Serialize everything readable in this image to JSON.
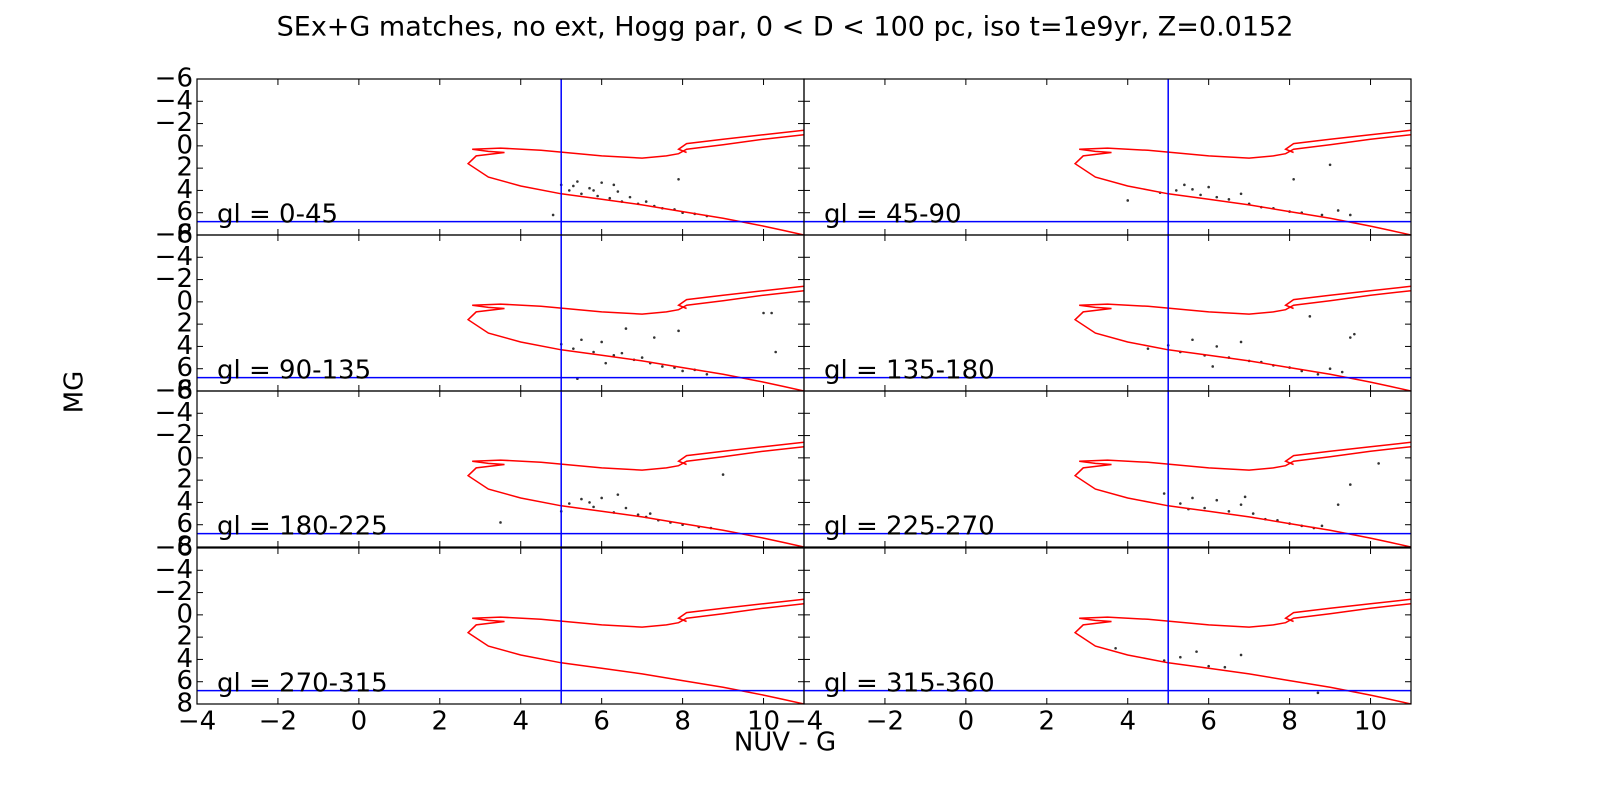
{
  "figure": {
    "title": "SEx+G matches, no ext, Hogg par, 0 < D < 100 pc, iso t=1e9yr, Z=0.0152",
    "x_label": "NUV - G",
    "y_label": "MG"
  },
  "chart_data": [
    {
      "type": "scatter",
      "annotation": "gl = 0-45",
      "xlim": [
        -4,
        11
      ],
      "ylim": [
        -6,
        8
      ],
      "y_inverted": true,
      "xticks": [
        {
          "value": -4,
          "label": "−4"
        },
        {
          "value": -2,
          "label": "−2"
        },
        0,
        2,
        4,
        6,
        8,
        10
      ],
      "yticks": [
        {
          "value": -6,
          "label": "−6"
        },
        {
          "value": -4,
          "label": "−4"
        },
        {
          "value": -2,
          "label": "−2"
        },
        0,
        2,
        4,
        6,
        8
      ],
      "vline": 5,
      "hline": 6.8,
      "line_color": "#0000ff",
      "isochrone": {
        "color": "#ff0000",
        "x": [
          11,
          10.5,
          10,
          9,
          8,
          7,
          6,
          5,
          4,
          3.2,
          2.7,
          2.9,
          3.6,
          3.2,
          2.8,
          3.5,
          4.5,
          6,
          7,
          7.6,
          7.9,
          8.1,
          9,
          10,
          11,
          null,
          11,
          10,
          9,
          8.1,
          7.9,
          8.1
        ],
        "y": [
          8,
          7.6,
          7.2,
          6.5,
          5.9,
          5.3,
          4.8,
          4.3,
          3.6,
          2.8,
          1.6,
          0.9,
          0.6,
          0.5,
          0.3,
          0.2,
          0.4,
          0.9,
          1.1,
          0.9,
          0.7,
          0.3,
          -0.1,
          -0.6,
          -1.0,
          null,
          -1.4,
          -1.0,
          -0.6,
          -0.2,
          0.3,
          0.6
        ]
      },
      "points": {
        "color": "#333333",
        "x": [
          5.0,
          5.2,
          5.4,
          5.5,
          5.7,
          5.9,
          6.0,
          6.2,
          6.4,
          6.5,
          6.7,
          6.9,
          7.1,
          7.3,
          7.5,
          7.8,
          8.0,
          8.3,
          8.6,
          5.3,
          5.8,
          6.3,
          7.9,
          4.8
        ],
        "y": [
          3.5,
          4.0,
          3.2,
          4.3,
          3.8,
          4.5,
          3.3,
          4.7,
          4.1,
          5.0,
          4.6,
          5.2,
          5.0,
          5.4,
          5.6,
          5.7,
          6.0,
          6.1,
          6.3,
          3.6,
          4.0,
          3.5,
          3.0,
          6.2
        ]
      }
    },
    {
      "type": "scatter",
      "annotation": "gl = 45-90",
      "xlim": [
        -4,
        11
      ],
      "ylim": [
        -6,
        8
      ],
      "y_inverted": true,
      "xticks": [
        {
          "value": -4,
          "label": "−4"
        },
        {
          "value": -2,
          "label": "−2"
        },
        0,
        2,
        4,
        6,
        8,
        10
      ],
      "yticks": [
        {
          "value": -6,
          "label": "−6"
        },
        {
          "value": -4,
          "label": "−4"
        },
        {
          "value": -2,
          "label": "−2"
        },
        0,
        2,
        4,
        6,
        8
      ],
      "vline": 5,
      "hline": 6.8,
      "line_color": "#0000ff",
      "isochrone": {
        "color": "#ff0000",
        "x": [
          11,
          10.5,
          10,
          9,
          8,
          7,
          6,
          5,
          4,
          3.2,
          2.7,
          2.9,
          3.6,
          3.2,
          2.8,
          3.5,
          4.5,
          6,
          7,
          7.6,
          7.9,
          8.1,
          9,
          10,
          11,
          null,
          11,
          10,
          9,
          8.1,
          7.9,
          8.1
        ],
        "y": [
          8,
          7.6,
          7.2,
          6.5,
          5.9,
          5.3,
          4.8,
          4.3,
          3.6,
          2.8,
          1.6,
          0.9,
          0.6,
          0.5,
          0.3,
          0.2,
          0.4,
          0.9,
          1.1,
          0.9,
          0.7,
          0.3,
          -0.1,
          -0.6,
          -1.0,
          null,
          -1.4,
          -1.0,
          -0.6,
          -0.2,
          0.3,
          0.6
        ]
      },
      "points": {
        "color": "#333333",
        "x": [
          4.0,
          4.8,
          5.2,
          5.4,
          5.6,
          5.8,
          6.0,
          6.2,
          6.5,
          6.8,
          7.0,
          7.3,
          7.6,
          8.0,
          8.3,
          8.8,
          9.0,
          9.5,
          9.2,
          8.1
        ],
        "y": [
          4.9,
          4.2,
          4.0,
          3.5,
          3.9,
          4.4,
          3.7,
          4.6,
          4.8,
          4.3,
          5.2,
          5.5,
          5.6,
          5.9,
          6.0,
          6.2,
          1.7,
          6.2,
          5.8,
          3.0
        ]
      }
    },
    {
      "type": "scatter",
      "annotation": "gl = 90-135",
      "xlim": [
        -4,
        11
      ],
      "ylim": [
        -6,
        8
      ],
      "y_inverted": true,
      "xticks": [
        {
          "value": -4,
          "label": "−4"
        },
        {
          "value": -2,
          "label": "−2"
        },
        0,
        2,
        4,
        6,
        8,
        10
      ],
      "yticks": [
        {
          "value": -6,
          "label": "−6"
        },
        {
          "value": -4,
          "label": "−4"
        },
        {
          "value": -2,
          "label": "−2"
        },
        0,
        2,
        4,
        6,
        8
      ],
      "vline": 5,
      "hline": 6.8,
      "line_color": "#0000ff",
      "isochrone": {
        "color": "#ff0000",
        "x": [
          11,
          10.5,
          10,
          9,
          8,
          7,
          6,
          5,
          4,
          3.2,
          2.7,
          2.9,
          3.6,
          3.2,
          2.8,
          3.5,
          4.5,
          6,
          7,
          7.6,
          7.9,
          8.1,
          9,
          10,
          11,
          null,
          11,
          10,
          9,
          8.1,
          7.9,
          8.1
        ],
        "y": [
          8,
          7.6,
          7.2,
          6.5,
          5.9,
          5.3,
          4.8,
          4.3,
          3.6,
          2.8,
          1.6,
          0.9,
          0.6,
          0.5,
          0.3,
          0.2,
          0.4,
          0.9,
          1.1,
          0.9,
          0.7,
          0.3,
          -0.1,
          -0.6,
          -1.0,
          null,
          -1.4,
          -1.0,
          -0.6,
          -0.2,
          0.3,
          0.6
        ]
      },
      "points": {
        "color": "#333333",
        "x": [
          5.0,
          5.3,
          5.5,
          5.8,
          6.0,
          6.3,
          6.5,
          6.8,
          7.0,
          7.2,
          7.5,
          7.8,
          8.0,
          8.3,
          8.6,
          6.6,
          7.3,
          7.9,
          10.0,
          10.2,
          10.3,
          5.4,
          6.1
        ],
        "y": [
          3.8,
          4.2,
          3.4,
          4.5,
          3.6,
          4.8,
          4.6,
          5.2,
          5.0,
          5.5,
          5.8,
          5.9,
          6.2,
          6.1,
          6.5,
          2.4,
          3.2,
          2.6,
          1.0,
          1.0,
          4.5,
          6.9,
          5.5
        ]
      }
    },
    {
      "type": "scatter",
      "annotation": "gl = 135-180",
      "xlim": [
        -4,
        11
      ],
      "ylim": [
        -6,
        8
      ],
      "y_inverted": true,
      "xticks": [
        {
          "value": -4,
          "label": "−4"
        },
        {
          "value": -2,
          "label": "−2"
        },
        0,
        2,
        4,
        6,
        8,
        10
      ],
      "yticks": [
        {
          "value": -6,
          "label": "−6"
        },
        {
          "value": -4,
          "label": "−4"
        },
        {
          "value": -2,
          "label": "−2"
        },
        0,
        2,
        4,
        6,
        8
      ],
      "vline": 5,
      "hline": 6.8,
      "line_color": "#0000ff",
      "isochrone": {
        "color": "#ff0000",
        "x": [
          11,
          10.5,
          10,
          9,
          8,
          7,
          6,
          5,
          4,
          3.2,
          2.7,
          2.9,
          3.6,
          3.2,
          2.8,
          3.5,
          4.5,
          6,
          7,
          7.6,
          7.9,
          8.1,
          9,
          10,
          11,
          null,
          11,
          10,
          9,
          8.1,
          7.9,
          8.1
        ],
        "y": [
          8,
          7.6,
          7.2,
          6.5,
          5.9,
          5.3,
          4.8,
          4.3,
          3.6,
          2.8,
          1.6,
          0.9,
          0.6,
          0.5,
          0.3,
          0.2,
          0.4,
          0.9,
          1.1,
          0.9,
          0.7,
          0.3,
          -0.1,
          -0.6,
          -1.0,
          null,
          -1.4,
          -1.0,
          -0.6,
          -0.2,
          0.3,
          0.6
        ]
      },
      "points": {
        "color": "#333333",
        "x": [
          4.5,
          5.0,
          5.3,
          5.6,
          5.9,
          6.2,
          6.5,
          6.8,
          7.0,
          7.3,
          7.6,
          8.0,
          8.3,
          8.7,
          9.0,
          9.3,
          9.5,
          9.6,
          8.5,
          6.1
        ],
        "y": [
          4.2,
          3.9,
          4.5,
          3.4,
          4.8,
          4.0,
          5.0,
          3.6,
          5.3,
          5.4,
          5.7,
          5.9,
          6.2,
          6.5,
          6.0,
          6.3,
          3.2,
          2.9,
          1.3,
          5.8
        ]
      }
    },
    {
      "type": "scatter",
      "annotation": "gl = 180-225",
      "xlim": [
        -4,
        11
      ],
      "ylim": [
        -6,
        8
      ],
      "y_inverted": true,
      "xticks": [
        {
          "value": -4,
          "label": "−4"
        },
        {
          "value": -2,
          "label": "−2"
        },
        0,
        2,
        4,
        6,
        8,
        10
      ],
      "yticks": [
        {
          "value": -6,
          "label": "−6"
        },
        {
          "value": -4,
          "label": "−4"
        },
        {
          "value": -2,
          "label": "−2"
        },
        0,
        2,
        4,
        6,
        8
      ],
      "vline": 5,
      "hline": 6.8,
      "line_color": "#0000ff",
      "isochrone": {
        "color": "#ff0000",
        "x": [
          11,
          10.5,
          10,
          9,
          8,
          7,
          6,
          5,
          4,
          3.2,
          2.7,
          2.9,
          3.6,
          3.2,
          2.8,
          3.5,
          4.5,
          6,
          7,
          7.6,
          7.9,
          8.1,
          9,
          10,
          11,
          null,
          11,
          10,
          9,
          8.1,
          7.9,
          8.1
        ],
        "y": [
          8,
          7.6,
          7.2,
          6.5,
          5.9,
          5.3,
          4.8,
          4.3,
          3.6,
          2.8,
          1.6,
          0.9,
          0.6,
          0.5,
          0.3,
          0.2,
          0.4,
          0.9,
          1.1,
          0.9,
          0.7,
          0.3,
          -0.1,
          -0.6,
          -1.0,
          null,
          -1.4,
          -1.0,
          -0.6,
          -0.2,
          0.3,
          0.6
        ]
      },
      "points": {
        "color": "#333333",
        "x": [
          3.5,
          5.0,
          5.2,
          5.5,
          5.8,
          6.0,
          6.3,
          6.6,
          6.9,
          7.1,
          7.4,
          7.7,
          8.0,
          8.4,
          8.7,
          6.4,
          9.0,
          5.7,
          7.2
        ],
        "y": [
          5.8,
          4.8,
          4.1,
          3.7,
          4.4,
          3.6,
          4.9,
          4.5,
          5.1,
          5.3,
          5.6,
          5.8,
          6.0,
          6.2,
          6.3,
          3.3,
          1.5,
          4.0,
          5.0
        ]
      }
    },
    {
      "type": "scatter",
      "annotation": "gl = 225-270",
      "xlim": [
        -4,
        11
      ],
      "ylim": [
        -6,
        8
      ],
      "y_inverted": true,
      "xticks": [
        {
          "value": -4,
          "label": "−4"
        },
        {
          "value": -2,
          "label": "−2"
        },
        0,
        2,
        4,
        6,
        8,
        10
      ],
      "yticks": [
        {
          "value": -6,
          "label": "−6"
        },
        {
          "value": -4,
          "label": "−4"
        },
        {
          "value": -2,
          "label": "−2"
        },
        0,
        2,
        4,
        6,
        8
      ],
      "vline": 5,
      "hline": 6.8,
      "line_color": "#0000ff",
      "isochrone": {
        "color": "#ff0000",
        "x": [
          11,
          10.5,
          10,
          9,
          8,
          7,
          6,
          5,
          4,
          3.2,
          2.7,
          2.9,
          3.6,
          3.2,
          2.8,
          3.5,
          4.5,
          6,
          7,
          7.6,
          7.9,
          8.1,
          9,
          10,
          11,
          null,
          11,
          10,
          9,
          8.1,
          7.9,
          8.1
        ],
        "y": [
          8,
          7.6,
          7.2,
          6.5,
          5.9,
          5.3,
          4.8,
          4.3,
          3.6,
          2.8,
          1.6,
          0.9,
          0.6,
          0.5,
          0.3,
          0.2,
          0.4,
          0.9,
          1.1,
          0.9,
          0.7,
          0.3,
          -0.1,
          -0.6,
          -1.0,
          null,
          -1.4,
          -1.0,
          -0.6,
          -0.2,
          0.3,
          0.6
        ]
      },
      "points": {
        "color": "#333333",
        "x": [
          4.9,
          5.3,
          5.6,
          5.9,
          6.2,
          6.5,
          6.8,
          7.1,
          7.4,
          7.7,
          8.0,
          8.3,
          8.6,
          8.8,
          9.2,
          9.5,
          10.2,
          5.5,
          6.9
        ],
        "y": [
          3.2,
          4.1,
          3.6,
          4.5,
          3.8,
          4.8,
          4.2,
          5.0,
          5.5,
          5.6,
          5.9,
          6.1,
          6.3,
          6.1,
          4.2,
          2.4,
          0.5,
          4.6,
          3.5
        ]
      }
    },
    {
      "type": "scatter",
      "annotation": "gl = 270-315",
      "xlim": [
        -4,
        11
      ],
      "ylim": [
        -6,
        8
      ],
      "y_inverted": true,
      "xticks": [
        {
          "value": -4,
          "label": "−4"
        },
        {
          "value": -2,
          "label": "−2"
        },
        0,
        2,
        4,
        6,
        8,
        10
      ],
      "yticks": [
        {
          "value": -6,
          "label": "−6"
        },
        {
          "value": -4,
          "label": "−4"
        },
        {
          "value": -2,
          "label": "−2"
        },
        0,
        2,
        4,
        6,
        8
      ],
      "vline": 5,
      "hline": 6.8,
      "line_color": "#0000ff",
      "isochrone": {
        "color": "#ff0000",
        "x": [
          11,
          10.5,
          10,
          9,
          8,
          7,
          6,
          5,
          4,
          3.2,
          2.7,
          2.9,
          3.6,
          3.2,
          2.8,
          3.5,
          4.5,
          6,
          7,
          7.6,
          7.9,
          8.1,
          9,
          10,
          11,
          null,
          11,
          10,
          9,
          8.1,
          7.9,
          8.1
        ],
        "y": [
          8,
          7.6,
          7.2,
          6.5,
          5.9,
          5.3,
          4.8,
          4.3,
          3.6,
          2.8,
          1.6,
          0.9,
          0.6,
          0.5,
          0.3,
          0.2,
          0.4,
          0.9,
          1.1,
          0.9,
          0.7,
          0.3,
          -0.1,
          -0.6,
          -1.0,
          null,
          -1.4,
          -1.0,
          -0.6,
          -0.2,
          0.3,
          0.6
        ]
      },
      "points": {
        "color": "#333333",
        "x": [],
        "y": []
      }
    },
    {
      "type": "scatter",
      "annotation": "gl = 315-360",
      "xlim": [
        -4,
        11
      ],
      "ylim": [
        -6,
        8
      ],
      "y_inverted": true,
      "xticks": [
        {
          "value": -4,
          "label": "−4"
        },
        {
          "value": -2,
          "label": "−2"
        },
        0,
        2,
        4,
        6,
        8,
        10
      ],
      "yticks": [
        {
          "value": -6,
          "label": "−6"
        },
        {
          "value": -4,
          "label": "−4"
        },
        {
          "value": -2,
          "label": "−2"
        },
        0,
        2,
        4,
        6,
        8
      ],
      "vline": 5,
      "hline": 6.8,
      "line_color": "#0000ff",
      "isochrone": {
        "color": "#ff0000",
        "x": [
          11,
          10.5,
          10,
          9,
          8,
          7,
          6,
          5,
          4,
          3.2,
          2.7,
          2.9,
          3.6,
          3.2,
          2.8,
          3.5,
          4.5,
          6,
          7,
          7.6,
          7.9,
          8.1,
          9,
          10,
          11,
          null,
          11,
          10,
          9,
          8.1,
          7.9,
          8.1
        ],
        "y": [
          8,
          7.6,
          7.2,
          6.5,
          5.9,
          5.3,
          4.8,
          4.3,
          3.6,
          2.8,
          1.6,
          0.9,
          0.6,
          0.5,
          0.3,
          0.2,
          0.4,
          0.9,
          1.1,
          0.9,
          0.7,
          0.3,
          -0.1,
          -0.6,
          -1.0,
          null,
          -1.4,
          -1.0,
          -0.6,
          -0.2,
          0.3,
          0.6
        ]
      },
      "points": {
        "color": "#333333",
        "x": [
          4.9,
          5.3,
          5.7,
          6.0,
          6.4,
          6.8,
          8.7,
          3.7
        ],
        "y": [
          4.1,
          3.8,
          3.3,
          4.6,
          4.7,
          3.6,
          7.0,
          3.0
        ]
      }
    }
  ]
}
